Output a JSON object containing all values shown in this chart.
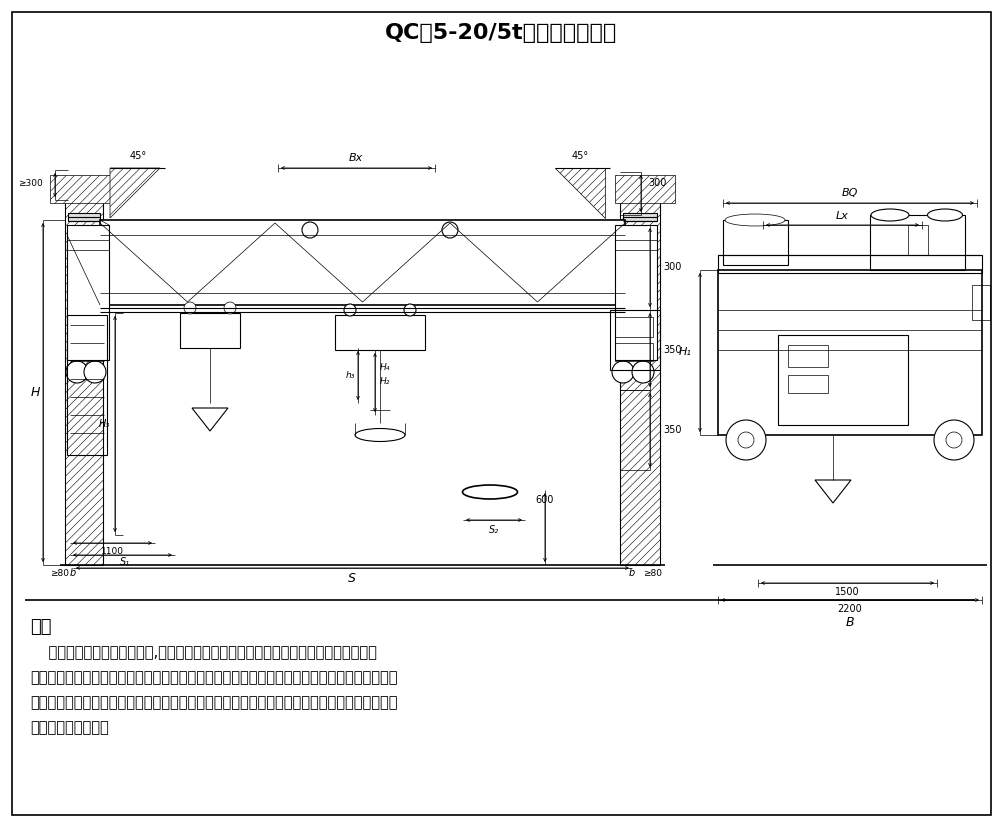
{
  "title": "QC型5-20/5t电磁桥式起重机",
  "title_fontsize": 16,
  "title_fontweight": "bold",
  "bg_color": "#ffffff",
  "line_color": "#000000",
  "intro_heading": "简介",
  "intro_line1": "    本起重机带有可卸的电磁盘,特别适用于冶金工厂在室内或露天的固定跨间装卸及搬运",
  "intro_line2": "具有导磁性的黑色金属制品与材料如钢锭、型钢、生铁块、废铁、废钢。在机械厂、库房中也常",
  "intro_line3": "用来搬运钢料、铁块、废铁、废钢、铁屑等物料。电磁盘通过直流发电机组或可控硅整流由小车",
  "intro_line4": "上软电缆直接供电。"
}
